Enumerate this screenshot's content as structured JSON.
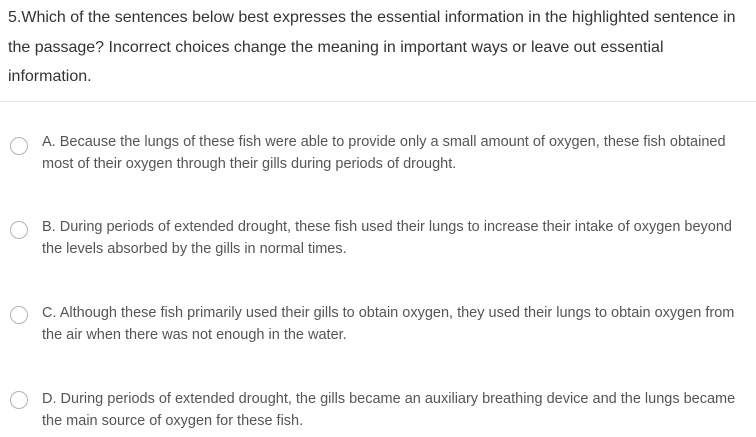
{
  "question": {
    "text": "5.Which of the sentences below best expresses the essential information in the highlighted sentence in the passage? Incorrect choices change the meaning in important ways or leave out essential information."
  },
  "options": [
    {
      "label": "A. Because the lungs of these fish were able to provide only a small amount of oxygen, these fish obtained most of their oxygen through their gills during periods of drought.",
      "selected": false
    },
    {
      "label": "B. During periods of extended drought, these fish used their lungs to increase their intake of oxygen beyond the levels absorbed by the gills in normal times.",
      "selected": false
    },
    {
      "label": "C. Although these fish primarily used their gills to obtain oxygen, they used their lungs to obtain oxygen from the air when there was not enough in the water.",
      "selected": false
    },
    {
      "label": "D. During periods of extended drought, the gills became an auxiliary breathing device and the lungs became the main source of oxygen for these fish.",
      "selected": false
    }
  ]
}
